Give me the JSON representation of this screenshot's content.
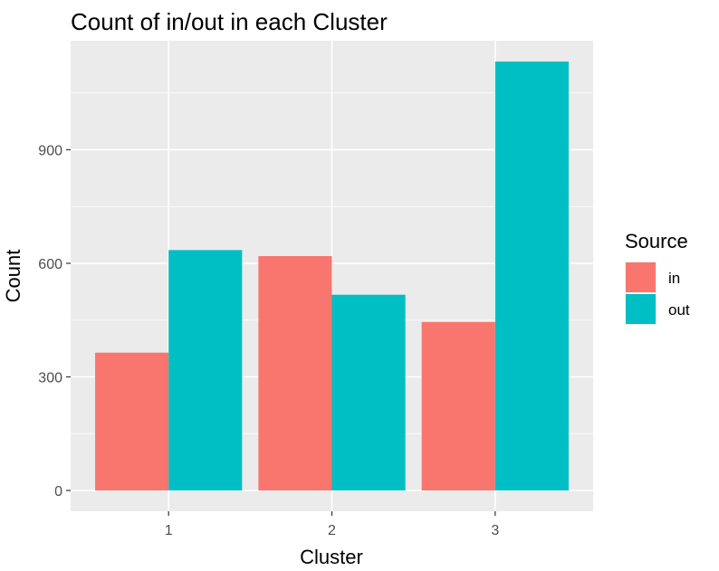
{
  "chart_data": {
    "type": "bar",
    "title": "Count of in/out in each Cluster",
    "xlabel": "Cluster",
    "ylabel": "Count",
    "categories": [
      "1",
      "2",
      "3"
    ],
    "series": [
      {
        "name": "in",
        "values": [
          364,
          619,
          445
        ]
      },
      {
        "name": "out",
        "values": [
          635,
          517,
          1133
        ]
      }
    ],
    "ylim": [
      -55,
      1188
    ],
    "yticks": [
      0,
      300,
      600,
      900
    ],
    "ytick_labels": [
      "0",
      "300",
      "600",
      "900"
    ],
    "grid": true,
    "legend": {
      "title": "Source",
      "position": "right"
    },
    "colors": {
      "in": "#F8766D",
      "out": "#00BFC4",
      "panel": "#EBEBEB",
      "grid": "#FFFFFF"
    }
  }
}
